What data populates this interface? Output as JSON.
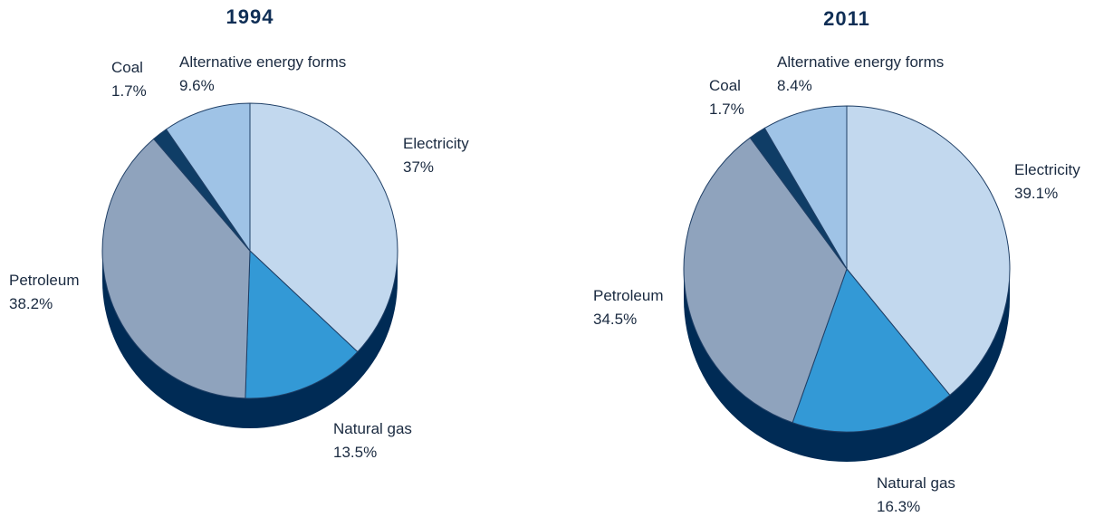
{
  "chart_data": [
    {
      "type": "pie",
      "title": "1994",
      "categories": [
        "Electricity",
        "Natural gas",
        "Petroleum",
        "Coal",
        "Alternative energy forms"
      ],
      "values": [
        37,
        13.5,
        38.2,
        1.7,
        9.6
      ],
      "value_labels": [
        "37%",
        "13.5%",
        "38.2%",
        "1.7%",
        "9.6%"
      ],
      "colors": [
        "#c2d8ee",
        "#3399d6",
        "#8fa3bd",
        "#0f3d66",
        "#9fc3e6"
      ]
    },
    {
      "type": "pie",
      "title": "2011",
      "categories": [
        "Electricity",
        "Natural gas",
        "Petroleum",
        "Coal",
        "Alternative energy forms"
      ],
      "values": [
        39.1,
        16.3,
        34.5,
        1.7,
        8.4
      ],
      "value_labels": [
        "39.1%",
        "16.3%",
        "34.5%",
        "1.7%",
        "8.4%"
      ],
      "colors": [
        "#c2d8ee",
        "#3399d6",
        "#8fa3bd",
        "#0f3d66",
        "#9fc3e6"
      ]
    }
  ]
}
